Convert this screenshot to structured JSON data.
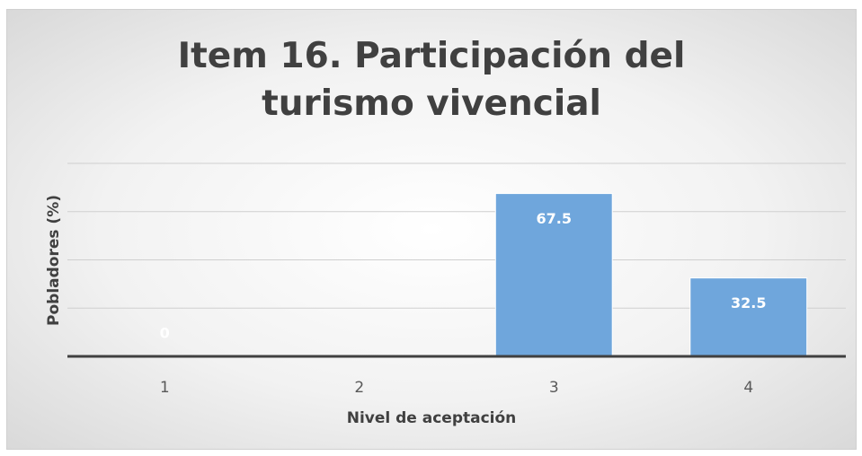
{
  "chart_data": {
    "type": "bar",
    "title": "Item 16. Participación del turismo vivencial",
    "x_label": "Nivel de aceptación",
    "y_label": "Pobladores (%)",
    "categories": [
      "1",
      "2",
      "3",
      "4"
    ],
    "values": [
      0,
      null,
      67.5,
      32.5
    ],
    "color": "#6fa6dc",
    "ylim": [
      0,
      80
    ],
    "yticks": [
      0,
      20,
      40,
      60,
      80
    ],
    "grid": true
  }
}
